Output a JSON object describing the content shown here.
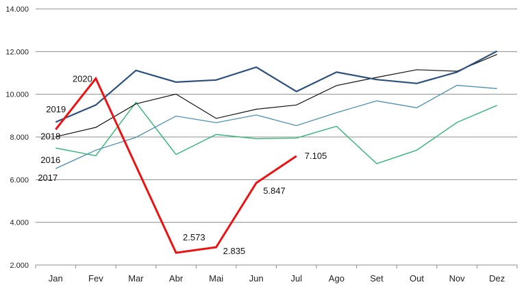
{
  "chart_data": {
    "type": "line",
    "title": "",
    "xlabel": "",
    "ylabel": "",
    "categories": [
      "Jan",
      "Fev",
      "Mar",
      "Abr",
      "Mai",
      "Jun",
      "Jul",
      "Ago",
      "Set",
      "Out",
      "Nov",
      "Dez"
    ],
    "ylim": [
      2000,
      14000
    ],
    "yticks": [
      2000,
      4000,
      6000,
      8000,
      10000,
      12000,
      14000
    ],
    "ytick_labels": [
      "2.000",
      "4.000",
      "6.000",
      "8.000",
      "10.000",
      "12.000",
      "14.000"
    ],
    "grid": true,
    "series": [
      {
        "name": "2016",
        "color": "#21b36b",
        "width": 1.3,
        "values": [
          7480,
          7120,
          9620,
          7180,
          8120,
          7920,
          7950,
          8500,
          6750,
          7380,
          8680,
          9480
        ]
      },
      {
        "name": "2017",
        "color": "#4a8fb0",
        "width": 1.3,
        "values": [
          6520,
          7380,
          7980,
          8980,
          8670,
          9030,
          8530,
          9140,
          9690,
          9370,
          10420,
          10270
        ]
      },
      {
        "name": "2018",
        "color": "#111111",
        "width": 1.2,
        "values": [
          8010,
          8450,
          9550,
          10010,
          8870,
          9300,
          9500,
          10410,
          10790,
          11150,
          11080,
          11870
        ]
      },
      {
        "name": "2019",
        "color": "#2b4f7e",
        "width": 2.2,
        "values": [
          8700,
          9500,
          11120,
          10570,
          10670,
          11270,
          10130,
          11040,
          10690,
          10510,
          11040,
          12020
        ]
      },
      {
        "name": "2020",
        "color": "#ee1111",
        "width": 3,
        "values": [
          8350,
          10740,
          6650,
          2573,
          2835,
          5847,
          7105,
          null,
          null,
          null,
          null,
          null
        ]
      }
    ],
    "data_labels": [
      {
        "series": "2020",
        "index": 3,
        "text": "2.573"
      },
      {
        "series": "2020",
        "index": 4,
        "text": "2.835"
      },
      {
        "series": "2020",
        "index": 5,
        "text": "5.847"
      },
      {
        "series": "2020",
        "index": 6,
        "text": "7.105"
      }
    ]
  }
}
